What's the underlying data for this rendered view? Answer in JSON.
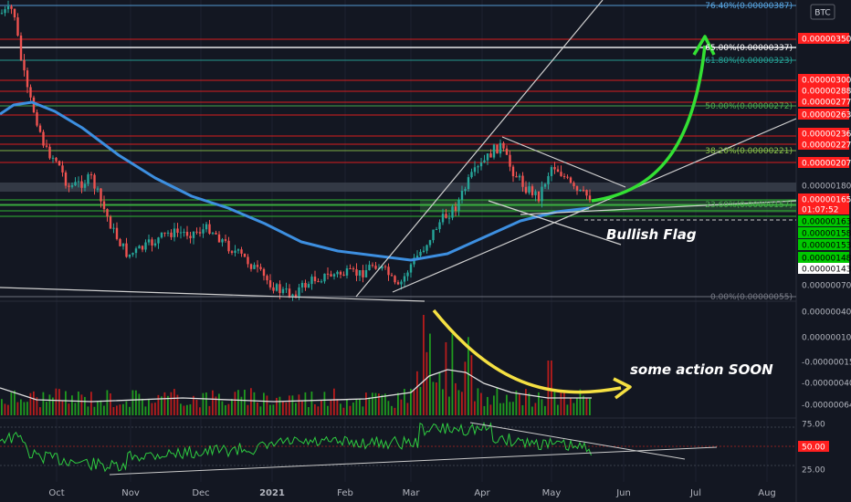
{
  "chart_data": {
    "type": "candlestick",
    "symbol_badge": "BTC",
    "x_ticks": [
      "Oct",
      "Nov",
      "Dec",
      "2021",
      "Feb",
      "Mar",
      "Apr",
      "May",
      "Jun",
      "Jul",
      "Aug"
    ],
    "fib_levels": [
      {
        "label": "76.40%(0.00000387)",
        "color": "#5aa9e6"
      },
      {
        "label": "65.00%(0.00000337)",
        "color": "#ffffff"
      },
      {
        "label": "61.80%(0.00000323)",
        "color": "#26a69a"
      },
      {
        "label": "50.00%(0.00000272)",
        "color": "#4caf50"
      },
      {
        "label": "38.20%(0.00000221)",
        "color": "#8bc34a"
      },
      {
        "label": "23.60%(0.00000157)",
        "color": "#4caf50"
      },
      {
        "label": "0.00%(0.00000055)",
        "color": "#787b86"
      }
    ],
    "price_labels": [
      {
        "text": "0.00000350",
        "bg": "#ff1f1f",
        "fg": "#ffffff"
      },
      {
        "text": "0.00000300",
        "bg": "#ff1f1f",
        "fg": "#ffffff"
      },
      {
        "text": "0.00000288",
        "bg": "#ff1f1f",
        "fg": "#ffffff"
      },
      {
        "text": "0.00000277",
        "bg": "#ff1f1f",
        "fg": "#ffffff"
      },
      {
        "text": "0.00000263",
        "bg": "#ff1f1f",
        "fg": "#ffffff"
      },
      {
        "text": "0.00000236",
        "bg": "#ff1f1f",
        "fg": "#ffffff"
      },
      {
        "text": "0.00000227",
        "bg": "#ff1f1f",
        "fg": "#ffffff"
      },
      {
        "text": "0.00000207",
        "bg": "#ff1f1f",
        "fg": "#ffffff"
      },
      {
        "text": "0.00000180",
        "bg": "",
        "fg": "#b2b5be"
      },
      {
        "text": "0.00000165",
        "bg": "#ff1f1f",
        "fg": "#ffffff"
      },
      {
        "text": "01:07:52",
        "bg": "#ff1f1f",
        "fg": "#ffffff"
      },
      {
        "text": "0.00000163",
        "bg": "#00c800",
        "fg": "#000000"
      },
      {
        "text": "0.00000158",
        "bg": "#00c800",
        "fg": "#000000"
      },
      {
        "text": "0.00000153",
        "bg": "#00c800",
        "fg": "#000000"
      },
      {
        "text": "0.00000148",
        "bg": "#00c800",
        "fg": "#000000"
      },
      {
        "text": "0.00000143",
        "bg": "#ffffff",
        "fg": "#000000"
      },
      {
        "text": "0.00000070",
        "bg": "",
        "fg": "#b2b5be"
      },
      {
        "text": "0.00000040",
        "bg": "",
        "fg": "#b2b5be"
      },
      {
        "text": "0.00000010",
        "bg": "",
        "fg": "#b2b5be"
      },
      {
        "text": "-0.00000015",
        "bg": "",
        "fg": "#b2b5be"
      },
      {
        "text": "-0.00000040",
        "bg": "",
        "fg": "#b2b5be"
      },
      {
        "text": "-0.00000064",
        "bg": "",
        "fg": "#b2b5be"
      }
    ],
    "rsi_ticks": [
      "75.00",
      "50.00",
      "25.00"
    ],
    "rsi_label": {
      "text": "50.00",
      "bg": "#ff1f1f"
    },
    "annotations": {
      "flag": "Bullish Flag",
      "action": "some action SOON"
    },
    "colors": {
      "background": "#131722",
      "up": "#26a69a",
      "down": "#ef5350",
      "ma": "#3d8fe0",
      "arrow_green": "#33e033",
      "arrow_yellow": "#f5e042",
      "rsi": "#2ecc40"
    }
  }
}
